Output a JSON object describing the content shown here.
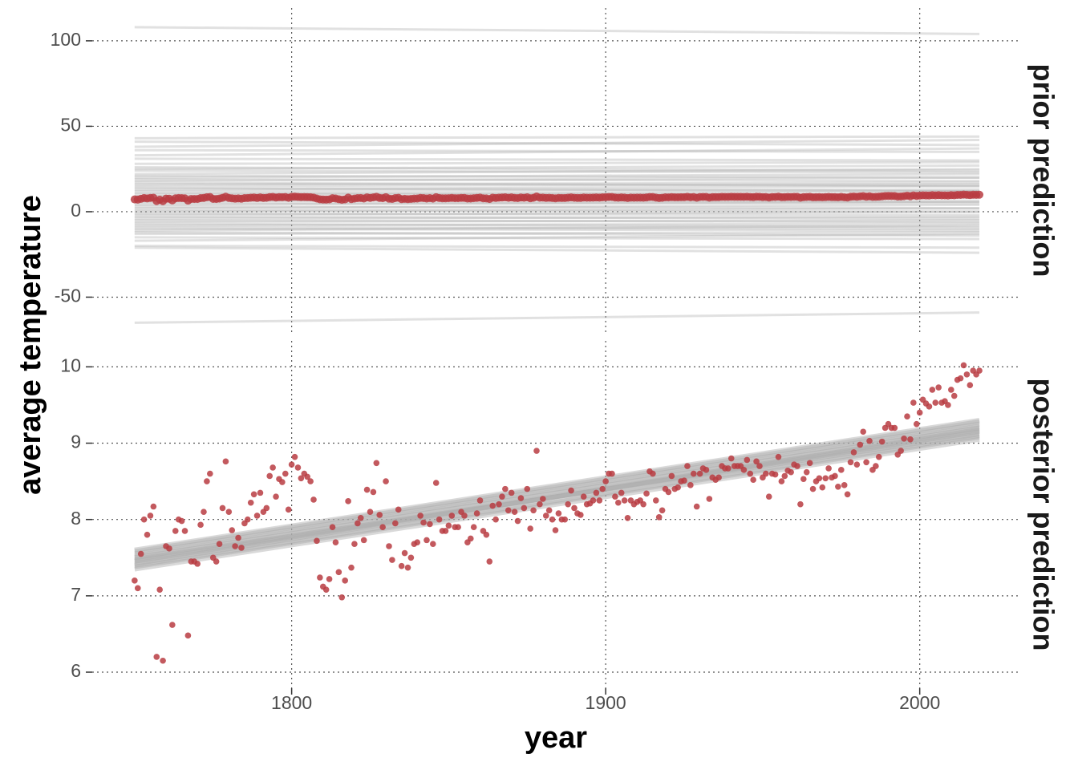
{
  "chart_data": {
    "type": "scatter",
    "x_label": "year",
    "y_label": "average temperature",
    "xlim": [
      1736.5,
      2031.5
    ],
    "xticks": [
      1800,
      1900,
      2000
    ],
    "grid": true,
    "color": "#b83c42",
    "x": [
      1750,
      1751,
      1752,
      1753,
      1754,
      1755,
      1756,
      1757,
      1758,
      1759,
      1760,
      1761,
      1762,
      1763,
      1764,
      1765,
      1766,
      1767,
      1768,
      1769,
      1770,
      1771,
      1772,
      1773,
      1774,
      1775,
      1776,
      1777,
      1778,
      1779,
      1780,
      1781,
      1782,
      1783,
      1784,
      1785,
      1786,
      1787,
      1788,
      1789,
      1790,
      1791,
      1792,
      1793,
      1794,
      1795,
      1796,
      1797,
      1798,
      1799,
      1800,
      1801,
      1802,
      1803,
      1804,
      1805,
      1806,
      1807,
      1808,
      1809,
      1810,
      1811,
      1812,
      1813,
      1814,
      1815,
      1816,
      1817,
      1818,
      1819,
      1820,
      1821,
      1822,
      1823,
      1824,
      1825,
      1826,
      1827,
      1828,
      1829,
      1830,
      1831,
      1832,
      1833,
      1834,
      1835,
      1836,
      1837,
      1838,
      1839,
      1840,
      1841,
      1842,
      1843,
      1844,
      1845,
      1846,
      1847,
      1848,
      1849,
      1850,
      1851,
      1852,
      1853,
      1854,
      1855,
      1856,
      1857,
      1858,
      1859,
      1860,
      1861,
      1862,
      1863,
      1864,
      1865,
      1866,
      1867,
      1868,
      1869,
      1870,
      1871,
      1872,
      1873,
      1874,
      1875,
      1876,
      1877,
      1878,
      1879,
      1880,
      1881,
      1882,
      1883,
      1884,
      1885,
      1886,
      1887,
      1888,
      1889,
      1890,
      1891,
      1892,
      1893,
      1894,
      1895,
      1896,
      1897,
      1898,
      1899,
      1900,
      1901,
      1902,
      1903,
      1904,
      1905,
      1906,
      1907,
      1908,
      1909,
      1910,
      1911,
      1912,
      1913,
      1914,
      1915,
      1916,
      1917,
      1918,
      1919,
      1920,
      1921,
      1922,
      1923,
      1924,
      1925,
      1926,
      1927,
      1928,
      1929,
      1930,
      1931,
      1932,
      1933,
      1934,
      1935,
      1936,
      1937,
      1938,
      1939,
      1940,
      1941,
      1942,
      1943,
      1944,
      1945,
      1946,
      1947,
      1948,
      1949,
      1950,
      1951,
      1952,
      1953,
      1954,
      1955,
      1956,
      1957,
      1958,
      1959,
      1960,
      1961,
      1962,
      1963,
      1964,
      1965,
      1966,
      1967,
      1968,
      1969,
      1970,
      1971,
      1972,
      1973,
      1974,
      1975,
      1976,
      1977,
      1978,
      1979,
      1980,
      1981,
      1982,
      1983,
      1984,
      1985,
      1986,
      1987,
      1988,
      1989,
      1990,
      1991,
      1992,
      1993,
      1994,
      1995,
      1996,
      1997,
      1998,
      1999,
      2000,
      2001,
      2002,
      2003,
      2004,
      2005,
      2006,
      2007,
      2008,
      2009,
      2010,
      2011,
      2012,
      2013,
      2014,
      2015,
      2016,
      2017,
      2018,
      2019
    ],
    "values": [
      7.2,
      7.1,
      7.55,
      8.0,
      7.8,
      8.05,
      8.17,
      6.2,
      7.08,
      6.15,
      7.65,
      7.62,
      6.62,
      7.85,
      8.0,
      7.98,
      7.85,
      6.48,
      7.45,
      7.45,
      7.42,
      7.93,
      8.1,
      8.5,
      8.6,
      7.5,
      7.45,
      7.68,
      8.15,
      8.76,
      8.1,
      7.86,
      7.65,
      7.76,
      7.63,
      7.95,
      8.0,
      8.22,
      8.33,
      8.05,
      8.35,
      8.1,
      8.15,
      8.57,
      8.68,
      8.3,
      8.53,
      8.49,
      8.6,
      8.13,
      8.72,
      8.82,
      8.68,
      8.54,
      8.6,
      8.56,
      8.5,
      8.26,
      7.72,
      7.24,
      7.12,
      7.08,
      7.22,
      7.9,
      7.7,
      7.31,
      6.98,
      7.2,
      8.24,
      7.37,
      7.68,
      7.95,
      8.02,
      7.73,
      8.39,
      8.1,
      8.36,
      8.74,
      8.06,
      7.9,
      8.5,
      7.65,
      7.47,
      7.95,
      8.13,
      7.39,
      7.56,
      7.37,
      7.5,
      7.68,
      7.7,
      8.05,
      7.96,
      7.73,
      7.94,
      7.68,
      8.48,
      8.0,
      7.85,
      7.85,
      7.92,
      8.05,
      7.9,
      7.9,
      8.1,
      8.05,
      7.7,
      7.75,
      7.9,
      8.08,
      8.25,
      7.85,
      7.8,
      7.45,
      8.18,
      8.0,
      8.2,
      8.3,
      8.4,
      8.12,
      8.35,
      8.1,
      7.98,
      8.28,
      8.15,
      8.4,
      7.88,
      8.12,
      8.9,
      8.2,
      8.27,
      8.05,
      8.12,
      8.0,
      7.86,
      8.08,
      8.0,
      8.0,
      8.2,
      8.38,
      8.15,
      8.08,
      8.06,
      8.3,
      8.2,
      8.21,
      8.25,
      8.35,
      8.25,
      8.4,
      8.5,
      8.6,
      8.6,
      8.3,
      8.22,
      8.35,
      8.25,
      8.02,
      8.25,
      8.2,
      8.23,
      8.25,
      8.2,
      8.34,
      8.63,
      8.6,
      8.25,
      8.03,
      8.12,
      8.4,
      8.36,
      8.57,
      8.4,
      8.42,
      8.5,
      8.51,
      8.7,
      8.45,
      8.6,
      8.17,
      8.6,
      8.67,
      8.65,
      8.27,
      8.55,
      8.52,
      8.55,
      8.7,
      8.67,
      8.67,
      8.8,
      8.7,
      8.7,
      8.7,
      8.65,
      8.78,
      8.6,
      8.52,
      8.76,
      8.7,
      8.55,
      8.6,
      8.3,
      8.6,
      8.59,
      8.82,
      8.5,
      8.57,
      8.64,
      8.62,
      8.72,
      8.7,
      8.2,
      8.53,
      8.62,
      8.74,
      8.4,
      8.5,
      8.54,
      8.42,
      8.54,
      8.67,
      8.55,
      8.57,
      8.43,
      8.65,
      8.45,
      8.33,
      8.75,
      8.88,
      8.72,
      8.98,
      9.15,
      8.75,
      9.03,
      8.65,
      8.7,
      8.82,
      9.02,
      9.2,
      9.25,
      9.2,
      9.2,
      8.85,
      8.9,
      9.06,
      9.35,
      9.05,
      9.53,
      9.25,
      9.4,
      9.57,
      9.52,
      9.48,
      9.7,
      9.53,
      9.73,
      9.53,
      9.55,
      9.5,
      9.7,
      9.62,
      9.83,
      9.85,
      10.02,
      9.9,
      9.76,
      9.95,
      9.9,
      9.95
    ],
    "panels": [
      {
        "label": "prior prediction",
        "ylim": [
          -70.9,
          119.2
        ],
        "yticks": [
          -50,
          0,
          50,
          100
        ],
        "lines": {
          "color": "#aaaaaa",
          "x": [
            1750,
            2019
          ],
          "values": [
            [
              108,
              104
            ],
            [
              -65,
              -59
            ],
            [
              -21,
              -24
            ],
            [
              -20,
              -21
            ],
            [
              43,
              44
            ],
            [
              41,
              39
            ],
            [
              38,
              42
            ],
            [
              36,
              35
            ],
            [
              33,
              37
            ],
            [
              31,
              30
            ],
            [
              28,
              29
            ],
            [
              26,
              24
            ],
            [
              25,
              27
            ],
            [
              24,
              23
            ],
            [
              22,
              25
            ],
            [
              21,
              20
            ],
            [
              20,
              22
            ],
            [
              19,
              18
            ],
            [
              18,
              20
            ],
            [
              17,
              15
            ],
            [
              16,
              17
            ],
            [
              15,
              16
            ],
            [
              14,
              12
            ],
            [
              13,
              15
            ],
            [
              12,
              13
            ],
            [
              11,
              10
            ],
            [
              10,
              12
            ],
            [
              9,
              9
            ],
            [
              8,
              10
            ],
            [
              7,
              6
            ],
            [
              6,
              8
            ],
            [
              5,
              5
            ],
            [
              4,
              6
            ],
            [
              3,
              2
            ],
            [
              2,
              4
            ],
            [
              1,
              0
            ],
            [
              0,
              2
            ],
            [
              -1,
              -2
            ],
            [
              -2,
              0
            ],
            [
              -3,
              -4
            ],
            [
              -4,
              -3
            ],
            [
              -5,
              -6
            ],
            [
              -6,
              -5
            ],
            [
              -7,
              -9
            ],
            [
              -8,
              -7
            ],
            [
              -9,
              -10
            ],
            [
              -10,
              -11
            ],
            [
              -11,
              -8
            ],
            [
              -12,
              -14
            ],
            [
              -13,
              -12
            ],
            [
              -15,
              -16
            ],
            [
              -17,
              -13
            ]
          ]
        }
      },
      {
        "label": "posterior prediction",
        "ylim": [
          5.79,
          10.34
        ],
        "yticks": [
          6,
          7,
          8,
          9,
          10
        ],
        "lines": {
          "color": "#aaaaaa",
          "x": [
            1750,
            2019
          ],
          "values": [
            [
              7.35,
              9.05
            ],
            [
              7.4,
              9.1
            ],
            [
              7.45,
              9.15
            ],
            [
              7.5,
              9.2
            ],
            [
              7.55,
              9.25
            ],
            [
              7.6,
              9.3
            ],
            [
              7.42,
              9.18
            ],
            [
              7.48,
              9.12
            ],
            [
              7.52,
              9.22
            ],
            [
              7.38,
              9.08
            ],
            [
              7.58,
              9.28
            ],
            [
              7.46,
              9.16
            ]
          ]
        }
      }
    ]
  }
}
